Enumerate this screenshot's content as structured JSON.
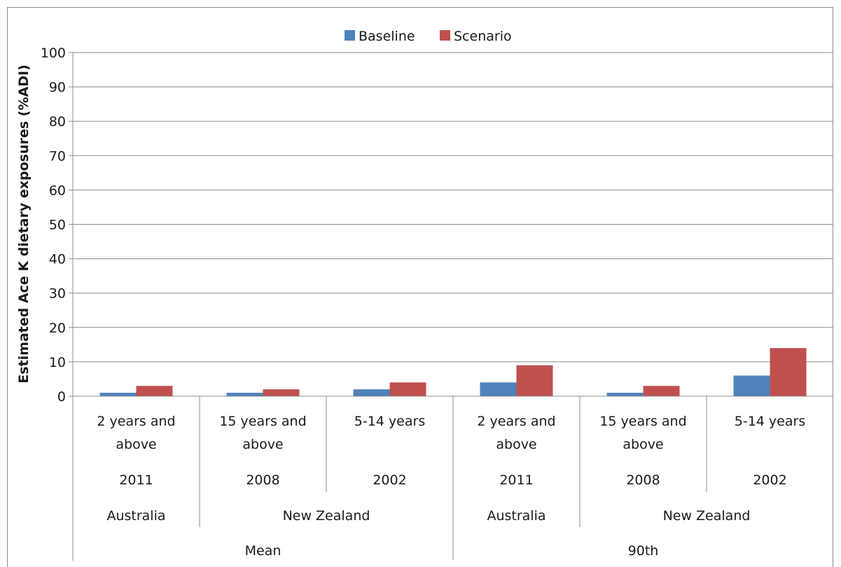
{
  "chart_data": {
    "type": "bar",
    "ylabel": "Estimated Ace K dietary exposures (%ADI)",
    "ylim": [
      0,
      100
    ],
    "yticks": [
      "0",
      "10",
      "20",
      "30",
      "40",
      "50",
      "60",
      "70",
      "80",
      "90",
      "100"
    ],
    "grid": true,
    "legend_position": "top",
    "categories": [
      {
        "label_lines": [
          "2 years and",
          "above"
        ],
        "year": "2011",
        "country": "Australia",
        "statistic": "Mean"
      },
      {
        "label_lines": [
          "15 years and",
          "above"
        ],
        "year": "2008",
        "country": "New Zealand",
        "statistic": "Mean"
      },
      {
        "label_lines": [
          "5-14 years"
        ],
        "year": "2002",
        "country": "New Zealand",
        "statistic": "Mean"
      },
      {
        "label_lines": [
          "2 years and",
          "above"
        ],
        "year": "2011",
        "country": "Australia",
        "statistic": "90th"
      },
      {
        "label_lines": [
          "15 years and",
          "above"
        ],
        "year": "2008",
        "country": "New Zealand",
        "statistic": "90th"
      },
      {
        "label_lines": [
          "5-14 years"
        ],
        "year": "2002",
        "country": "New Zealand",
        "statistic": "90th"
      }
    ],
    "country_groups": [
      {
        "label": "Australia",
        "span": [
          0,
          0
        ]
      },
      {
        "label": "New Zealand",
        "span": [
          1,
          2
        ]
      },
      {
        "label": "Australia",
        "span": [
          3,
          3
        ]
      },
      {
        "label": "New Zealand",
        "span": [
          4,
          5
        ]
      }
    ],
    "statistic_groups": [
      {
        "label": "Mean",
        "span": [
          0,
          2
        ]
      },
      {
        "label": "90th",
        "span": [
          3,
          5
        ]
      }
    ],
    "series": [
      {
        "name": "Baseline",
        "color": "#4f81bd",
        "values": [
          1,
          1,
          2,
          4,
          1,
          6
        ]
      },
      {
        "name": "Scenario",
        "color": "#c0504d",
        "values": [
          3,
          2,
          4,
          9,
          3,
          14
        ]
      }
    ]
  }
}
